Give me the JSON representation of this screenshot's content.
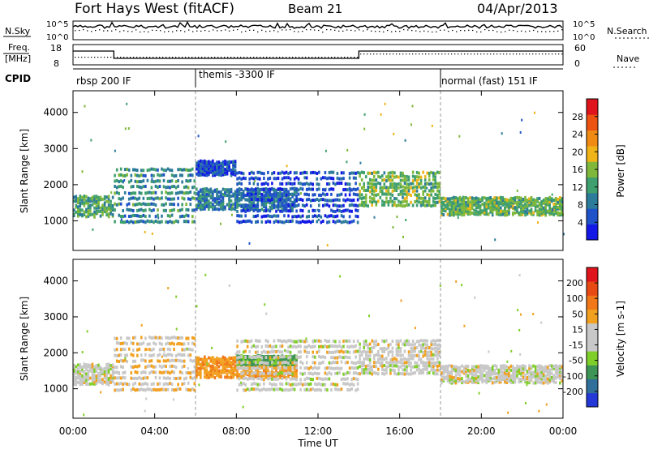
{
  "header": {
    "station": "Fort Hays West (fitACF)",
    "beam": "Beam 21",
    "date": "04/Apr/2013"
  },
  "top_panels": {
    "nsky_label": "N.Sky",
    "nsearch_label": "N.Search",
    "noise_ticks": [
      "10^5",
      "10^0"
    ],
    "freq_label_1": "Freq.",
    "freq_label_2": "[MHz]",
    "nave_label": "Nave",
    "freq_ticks": [
      "18",
      "8"
    ],
    "nave_ticks": [
      "60",
      "0"
    ],
    "cpid_label": "CPID",
    "modes": [
      {
        "name": "rbsp 200 IF",
        "start": 0
      },
      {
        "name": "themis -3300 IF",
        "start": 6
      },
      {
        "name": "normal (fast) 151 IF",
        "start": 18
      }
    ]
  },
  "colors": {
    "power_scale": [
      "#1418e6",
      "#1f52c8",
      "#2c7b9a",
      "#3f9f6e",
      "#7fb83a",
      "#f0b418",
      "#f08a12",
      "#ec5212",
      "#e0141c"
    ],
    "velocity_scale": [
      "#2438d8",
      "#2f6f9a",
      "#3d9455",
      "#7fcf2a",
      "#c8c8c8",
      "#c8c8c8",
      "#f2a020",
      "#f07818",
      "#e84a14",
      "#e0141c"
    ]
  },
  "chart_data": [
    {
      "type": "heatmap",
      "panel": "power",
      "xlabel": "Time UT",
      "ylabel": "Slant Range [km]",
      "xlim": [
        0,
        24
      ],
      "ylim": [
        180,
        4600
      ],
      "x_ticks": [
        "00:00",
        "04:00",
        "08:00",
        "12:00",
        "16:00",
        "20:00",
        "00:00"
      ],
      "y_ticks": [
        1000,
        2000,
        3000,
        4000
      ],
      "colorbar_label": "Power [dB]",
      "colorbar_ticks": [
        4,
        8,
        12,
        16,
        20,
        24,
        28
      ],
      "echo_bands": [
        {
          "time": [
            0,
            2
          ],
          "range": [
            1150,
            1750
          ],
          "level": 14
        },
        {
          "time": [
            2,
            6
          ],
          "range": [
            1000,
            2600
          ],
          "level": 12
        },
        {
          "time": [
            6,
            8
          ],
          "range": [
            2300,
            2700
          ],
          "level": 6
        },
        {
          "time": [
            6,
            11
          ],
          "range": [
            1350,
            1950
          ],
          "level": 10
        },
        {
          "time": [
            8,
            14
          ],
          "range": [
            1000,
            2500
          ],
          "level": 6
        },
        {
          "time": [
            14,
            18
          ],
          "range": [
            1450,
            2450
          ],
          "level": 16
        },
        {
          "time": [
            18,
            24
          ],
          "range": [
            1200,
            1700
          ],
          "level": 16
        }
      ]
    },
    {
      "type": "heatmap",
      "panel": "velocity",
      "xlabel": "Time UT",
      "ylabel": "Slant Range [km]",
      "xlim": [
        0,
        24
      ],
      "ylim": [
        180,
        4600
      ],
      "x_ticks": [
        "00:00",
        "04:00",
        "08:00",
        "12:00",
        "16:00",
        "20:00",
        "00:00"
      ],
      "y_ticks": [
        1000,
        2000,
        3000,
        4000
      ],
      "colorbar_label": "Velocity [m s-1]",
      "colorbar_ticks": [
        200,
        100,
        50,
        15,
        -15,
        -50,
        -100,
        -200
      ],
      "echo_bands": [
        {
          "time": [
            0,
            2
          ],
          "range": [
            1150,
            1750
          ],
          "level": 0
        },
        {
          "time": [
            2,
            6
          ],
          "range": [
            1000,
            2600
          ],
          "level": -10
        },
        {
          "time": [
            6,
            11
          ],
          "range": [
            1350,
            1950
          ],
          "level": -40
        },
        {
          "time": [
            8,
            11
          ],
          "range": [
            1700,
            1950
          ],
          "level": 60
        },
        {
          "time": [
            8,
            14
          ],
          "range": [
            1000,
            2500
          ],
          "level": 0
        },
        {
          "time": [
            14,
            18
          ],
          "range": [
            1450,
            2450
          ],
          "level": 0
        },
        {
          "time": [
            18,
            24
          ],
          "range": [
            1200,
            1700
          ],
          "level": 0
        }
      ]
    }
  ]
}
